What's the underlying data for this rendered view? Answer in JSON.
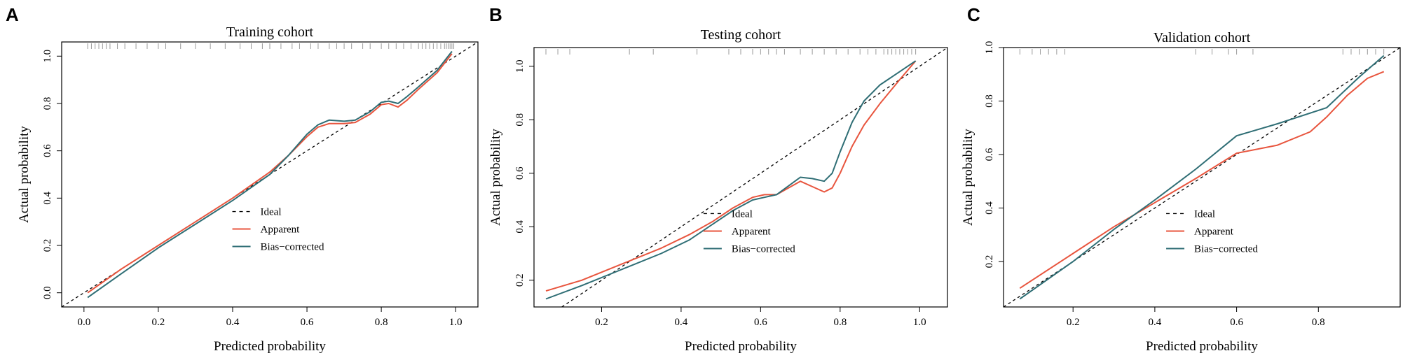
{
  "colors": {
    "ideal": "#000000",
    "apparent": "#e8553e",
    "bias_corrected": "#2f6e75",
    "rug": "#9a9a9a",
    "axis": "#000000"
  },
  "chart_data": [
    {
      "panel": "A",
      "type": "line",
      "title": "Training cohort",
      "xlabel": "Predicted probability",
      "ylabel": "Actual probability",
      "xlim": [
        -0.06,
        1.06
      ],
      "ylim": [
        -0.06,
        1.06
      ],
      "xticks": [
        0.0,
        0.2,
        0.4,
        0.6,
        0.8,
        1.0
      ],
      "xtick_labels": [
        "0.0",
        "0.2",
        "0.4",
        "0.6",
        "0.8",
        "1.0"
      ],
      "yticks": [
        0.0,
        0.2,
        0.4,
        0.6,
        0.8,
        1.0
      ],
      "ytick_labels": [
        "0.0",
        "0.2",
        "0.4",
        "0.6",
        "0.8",
        "1.0"
      ],
      "grid": false,
      "legend_position": "bottom-right",
      "rug": [
        0.01,
        0.02,
        0.03,
        0.04,
        0.05,
        0.06,
        0.07,
        0.09,
        0.11,
        0.14,
        0.17,
        0.2,
        0.22,
        0.26,
        0.3,
        0.34,
        0.38,
        0.42,
        0.45,
        0.48,
        0.5,
        0.53,
        0.56,
        0.58,
        0.61,
        0.63,
        0.66,
        0.68,
        0.7,
        0.72,
        0.75,
        0.77,
        0.8,
        0.82,
        0.84,
        0.86,
        0.88,
        0.9,
        0.91,
        0.92,
        0.93,
        0.94,
        0.95,
        0.96,
        0.97,
        0.975,
        0.98,
        0.985,
        0.99,
        0.995
      ],
      "series": [
        {
          "name": "Ideal",
          "style": "dashed",
          "x": [
            -0.06,
            1.06
          ],
          "y": [
            -0.06,
            1.06
          ]
        },
        {
          "name": "Apparent",
          "style": "apparent",
          "x": [
            0.01,
            0.1,
            0.2,
            0.3,
            0.4,
            0.5,
            0.55,
            0.6,
            0.63,
            0.66,
            0.7,
            0.73,
            0.77,
            0.8,
            0.82,
            0.845,
            0.87,
            0.9,
            0.95,
            0.99
          ],
          "y": [
            0.0,
            0.1,
            0.2,
            0.3,
            0.4,
            0.51,
            0.58,
            0.66,
            0.7,
            0.715,
            0.715,
            0.72,
            0.755,
            0.795,
            0.8,
            0.785,
            0.815,
            0.86,
            0.93,
            1.01
          ]
        },
        {
          "name": "Bias−corrected",
          "style": "bias_corrected",
          "x": [
            0.01,
            0.1,
            0.2,
            0.3,
            0.4,
            0.5,
            0.55,
            0.6,
            0.63,
            0.66,
            0.7,
            0.73,
            0.77,
            0.8,
            0.82,
            0.845,
            0.87,
            0.9,
            0.95,
            0.99
          ],
          "y": [
            -0.02,
            0.08,
            0.19,
            0.29,
            0.39,
            0.5,
            0.58,
            0.67,
            0.71,
            0.73,
            0.725,
            0.73,
            0.765,
            0.805,
            0.81,
            0.8,
            0.83,
            0.87,
            0.94,
            1.02
          ]
        }
      ]
    },
    {
      "panel": "B",
      "type": "line",
      "title": "Testing cohort",
      "xlabel": "Predicted probability",
      "ylabel": "Actual probability",
      "xlim": [
        0.03,
        1.07
      ],
      "ylim": [
        0.1,
        1.07
      ],
      "xticks": [
        0.2,
        0.4,
        0.6,
        0.8,
        1.0
      ],
      "xtick_labels": [
        "0.2",
        "0.4",
        "0.6",
        "0.8",
        "1.0"
      ],
      "yticks": [
        0.2,
        0.4,
        0.6,
        0.8,
        1.0
      ],
      "ytick_labels": [
        "0.2",
        "0.4",
        "0.6",
        "0.8",
        "1.0"
      ],
      "grid": false,
      "legend_position": "bottom-right",
      "rug": [
        0.06,
        0.09,
        0.12,
        0.27,
        0.33,
        0.44,
        0.52,
        0.55,
        0.58,
        0.6,
        0.62,
        0.64,
        0.66,
        0.7,
        0.73,
        0.76,
        0.79,
        0.82,
        0.85,
        0.87,
        0.89,
        0.91,
        0.92,
        0.93,
        0.94,
        0.95,
        0.96,
        0.97,
        0.98,
        0.99
      ],
      "series": [
        {
          "name": "Ideal",
          "style": "dashed",
          "x": [
            0.03,
            1.07
          ],
          "y": [
            0.03,
            1.07
          ]
        },
        {
          "name": "Apparent",
          "style": "apparent",
          "x": [
            0.06,
            0.15,
            0.25,
            0.35,
            0.42,
            0.48,
            0.53,
            0.58,
            0.61,
            0.64,
            0.7,
            0.73,
            0.76,
            0.78,
            0.8,
            0.83,
            0.86,
            0.9,
            0.95,
            0.99
          ],
          "y": [
            0.16,
            0.2,
            0.26,
            0.32,
            0.37,
            0.42,
            0.47,
            0.51,
            0.52,
            0.52,
            0.57,
            0.55,
            0.53,
            0.545,
            0.6,
            0.7,
            0.78,
            0.86,
            0.95,
            1.02
          ]
        },
        {
          "name": "Bias−corrected",
          "style": "bias_corrected",
          "x": [
            0.06,
            0.15,
            0.25,
            0.35,
            0.42,
            0.48,
            0.53,
            0.58,
            0.61,
            0.64,
            0.7,
            0.73,
            0.76,
            0.78,
            0.8,
            0.83,
            0.86,
            0.9,
            0.95,
            0.99
          ],
          "y": [
            0.13,
            0.18,
            0.24,
            0.3,
            0.35,
            0.41,
            0.46,
            0.5,
            0.51,
            0.52,
            0.585,
            0.58,
            0.57,
            0.6,
            0.68,
            0.79,
            0.87,
            0.93,
            0.98,
            1.02
          ]
        }
      ]
    },
    {
      "panel": "C",
      "type": "line",
      "title": "Validation cohort",
      "xlabel": "Predicted probability",
      "ylabel": "Actual probability",
      "xlim": [
        0.03,
        1.0
      ],
      "ylim": [
        0.03,
        1.0
      ],
      "xticks": [
        0.2,
        0.4,
        0.6,
        0.8
      ],
      "xtick_labels": [
        "0.2",
        "0.4",
        "0.6",
        "0.8"
      ],
      "yticks": [
        0.2,
        0.4,
        0.6,
        0.8,
        1.0
      ],
      "ytick_labels": [
        "0.2",
        "0.4",
        "0.6",
        "0.8",
        "1.0"
      ],
      "grid": false,
      "legend_position": "bottom-right",
      "rug": [
        0.07,
        0.1,
        0.12,
        0.14,
        0.16,
        0.18,
        0.5,
        0.54,
        0.58,
        0.6,
        0.64,
        0.86,
        0.88,
        0.9,
        0.92,
        0.94,
        0.96
      ],
      "series": [
        {
          "name": "Ideal",
          "style": "dashed",
          "x": [
            0.03,
            1.0
          ],
          "y": [
            0.03,
            1.0
          ]
        },
        {
          "name": "Apparent",
          "style": "apparent",
          "x": [
            0.07,
            0.2,
            0.3,
            0.4,
            0.5,
            0.6,
            0.7,
            0.78,
            0.82,
            0.87,
            0.92,
            0.96
          ],
          "y": [
            0.1,
            0.23,
            0.33,
            0.42,
            0.51,
            0.605,
            0.635,
            0.685,
            0.74,
            0.82,
            0.885,
            0.91
          ]
        },
        {
          "name": "Bias−corrected",
          "style": "bias_corrected",
          "x": [
            0.07,
            0.2,
            0.3,
            0.4,
            0.5,
            0.6,
            0.7,
            0.82,
            0.9,
            0.96
          ],
          "y": [
            0.06,
            0.2,
            0.32,
            0.43,
            0.545,
            0.67,
            0.715,
            0.775,
            0.89,
            0.97
          ]
        }
      ]
    }
  ],
  "legend": {
    "ideal": "Ideal",
    "apparent": "Apparent",
    "bias_corrected": "Bias−corrected"
  }
}
